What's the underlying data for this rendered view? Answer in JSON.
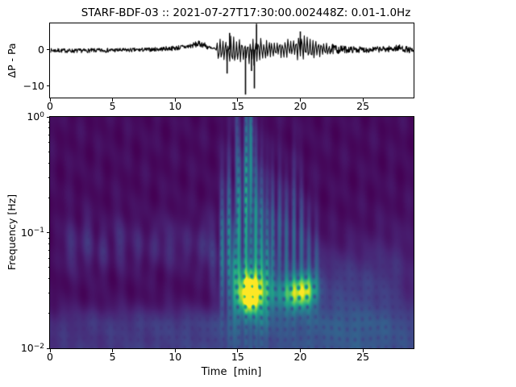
{
  "figure": {
    "title": "STARF-BDF-03 :: 2021-07-27T17:30:00.002448Z: 0.01-1.0Hz",
    "background": "#ffffff",
    "line_color": "#000000"
  },
  "axes": {
    "xlim": [
      0,
      29.05
    ],
    "x_ticks": [
      0,
      5,
      10,
      15,
      20,
      25
    ],
    "x_tick_labels": [
      "0",
      "5",
      "10",
      "15",
      "20",
      "25"
    ]
  },
  "waveform_plot": {
    "ylabel": "ΔP - Pa",
    "ylim": [
      -13.2,
      7.2
    ],
    "y_ticks": [
      {
        "value": 0,
        "label": "0"
      },
      {
        "value": -10,
        "label": "−10"
      }
    ]
  },
  "spectrogram_plot": {
    "ylabel": "Frequency [Hz]",
    "xlabel": "Time  [min]",
    "ylim_log10": [
      -2,
      0
    ],
    "y_major_ticks": [
      {
        "log10": 0,
        "base": "10",
        "exp": "0"
      },
      {
        "log10": -1,
        "base": "10",
        "exp": "−1"
      },
      {
        "log10": -2,
        "base": "10",
        "exp": "−2"
      }
    ],
    "y_minor_multipliers": [
      2,
      3,
      4,
      5,
      6,
      7,
      8,
      9
    ]
  },
  "chart_data": [
    {
      "type": "line",
      "name": "filtered-pressure-waveform",
      "title": "STARF-BDF-03 :: 2021-07-27T17:30:00.002448Z: 0.01-1.0Hz",
      "ylabel": "ΔP - Pa",
      "xlabel": "",
      "xlim": [
        0,
        29.05
      ],
      "ylim": [
        -13.2,
        7.2
      ],
      "yticks": [
        0,
        -10
      ],
      "xticks": [
        0,
        5,
        10,
        15,
        20,
        25
      ],
      "envelope": [
        [
          0.0,
          -0.8,
          0.35
        ],
        [
          1.0,
          -0.85,
          0.3
        ],
        [
          2.0,
          -0.95,
          0.25
        ],
        [
          3.0,
          -0.85,
          0.3
        ],
        [
          4.0,
          -0.8,
          0.35
        ],
        [
          5.0,
          -0.75,
          0.4
        ],
        [
          6.0,
          -0.7,
          0.4
        ],
        [
          7.0,
          -0.65,
          0.45
        ],
        [
          8.0,
          -0.55,
          0.55
        ],
        [
          9.0,
          -0.4,
          0.8
        ],
        [
          10.0,
          -0.25,
          1.1
        ],
        [
          11.0,
          0.1,
          1.6
        ],
        [
          11.8,
          0.7,
          2.4
        ],
        [
          12.2,
          0.6,
          2.3
        ],
        [
          12.7,
          -0.3,
          1.2
        ],
        [
          13.1,
          -1.0,
          0.7
        ],
        [
          13.4,
          -3.4,
          3.0
        ],
        [
          13.8,
          -4.8,
          4.2
        ],
        [
          14.2,
          -5.6,
          4.4
        ],
        [
          14.6,
          -5.2,
          4.1
        ],
        [
          15.0,
          -4.4,
          3.3
        ],
        [
          15.4,
          -3.6,
          2.9
        ],
        [
          15.8,
          -4.2,
          3.1
        ],
        [
          16.2,
          -5.2,
          3.3
        ],
        [
          16.6,
          -4.0,
          4.3
        ],
        [
          17.0,
          -3.6,
          3.1
        ],
        [
          17.4,
          -3.0,
          2.7
        ],
        [
          17.9,
          -2.3,
          2.1
        ],
        [
          18.4,
          -2.5,
          2.7
        ],
        [
          18.9,
          -2.9,
          3.4
        ],
        [
          19.3,
          -2.6,
          3.1
        ],
        [
          19.8,
          -3.3,
          4.5
        ],
        [
          20.2,
          -3.4,
          4.7
        ],
        [
          20.6,
          -3.1,
          3.9
        ],
        [
          21.1,
          -2.7,
          3.1
        ],
        [
          21.6,
          -2.2,
          2.3
        ],
        [
          22.1,
          -1.7,
          1.8
        ],
        [
          22.7,
          -1.3,
          1.4
        ],
        [
          23.3,
          -1.0,
          1.1
        ],
        [
          24.0,
          -0.9,
          0.9
        ],
        [
          25.0,
          -0.85,
          0.8
        ],
        [
          26.0,
          -0.8,
          0.85
        ],
        [
          27.0,
          -0.7,
          1.0
        ],
        [
          27.8,
          -0.5,
          1.4
        ],
        [
          28.3,
          -0.7,
          1.1
        ],
        [
          28.8,
          -1.1,
          0.6
        ],
        [
          29.05,
          -1.4,
          0.3
        ]
      ],
      "spikes": [
        [
          15.62,
          -12.4
        ],
        [
          16.33,
          -10.7
        ],
        [
          16.5,
          7.1
        ],
        [
          14.15,
          -6.6
        ],
        [
          14.35,
          4.6
        ],
        [
          16.1,
          -5.9
        ],
        [
          20.0,
          5.0
        ]
      ]
    },
    {
      "type": "heatmap",
      "name": "cwt-scalogram",
      "ylabel": "Frequency [Hz]",
      "xlabel": "Time  [min]",
      "xlim": [
        0,
        29.05
      ],
      "ylim": [
        0.01,
        1.0
      ],
      "yscale": "log",
      "colormap": {
        "name": "viridis",
        "anchors": [
          "#440154",
          "#482475",
          "#414487",
          "#355f8d",
          "#2a788e",
          "#21918c",
          "#22a884",
          "#44bf70",
          "#7ad151",
          "#bddf26",
          "#fde725"
        ]
      },
      "base_level": 0.03,
      "mottle_amp": 0.02,
      "speckle_depth": 0.55,
      "blobs_format": [
        "t_min",
        "log10_freq",
        "sigma_t",
        "sigma_logf",
        "amplitude"
      ],
      "blobs": [
        [
          15.95,
          -1.54,
          0.5,
          0.09,
          1.05
        ],
        [
          16.1,
          -1.47,
          1.0,
          0.16,
          0.45
        ],
        [
          19.9,
          -1.52,
          0.75,
          0.09,
          0.6
        ],
        [
          20.6,
          -1.5,
          0.5,
          0.1,
          0.28
        ],
        [
          18.2,
          -1.55,
          1.3,
          0.13,
          0.26
        ],
        [
          13.75,
          -1.15,
          0.14,
          0.38,
          0.4
        ],
        [
          14.3,
          -1.05,
          0.13,
          0.45,
          0.46
        ],
        [
          14.75,
          -1.35,
          0.16,
          0.3,
          0.45
        ],
        [
          15.1,
          -0.95,
          0.13,
          0.5,
          0.5
        ],
        [
          15.65,
          -0.9,
          0.13,
          0.55,
          0.52
        ],
        [
          16.05,
          -0.55,
          0.12,
          0.7,
          0.46
        ],
        [
          16.45,
          -1.0,
          0.13,
          0.5,
          0.5
        ],
        [
          16.9,
          -1.1,
          0.14,
          0.45,
          0.46
        ],
        [
          17.35,
          -1.2,
          0.14,
          0.38,
          0.4
        ],
        [
          17.8,
          -1.05,
          0.13,
          0.35,
          0.33
        ],
        [
          18.35,
          -1.0,
          0.14,
          0.35,
          0.3
        ],
        [
          18.9,
          -1.15,
          0.14,
          0.35,
          0.3
        ],
        [
          19.5,
          -1.05,
          0.13,
          0.4,
          0.32
        ],
        [
          20.1,
          -1.1,
          0.14,
          0.35,
          0.28
        ],
        [
          20.7,
          -1.25,
          0.14,
          0.3,
          0.24
        ],
        [
          21.3,
          -1.3,
          0.15,
          0.28,
          0.2
        ],
        [
          14.9,
          -0.35,
          0.1,
          0.45,
          0.18
        ],
        [
          15.7,
          -0.3,
          0.1,
          0.5,
          0.2
        ],
        [
          1.6,
          -1.12,
          0.35,
          0.16,
          0.13
        ],
        [
          3.0,
          -1.1,
          0.35,
          0.16,
          0.12
        ],
        [
          4.2,
          -1.15,
          0.3,
          0.14,
          0.1
        ],
        [
          5.6,
          -1.08,
          0.35,
          0.16,
          0.13
        ],
        [
          7.1,
          -1.12,
          0.3,
          0.15,
          0.11
        ],
        [
          8.4,
          -1.1,
          0.3,
          0.14,
          0.1
        ],
        [
          9.6,
          -1.1,
          0.35,
          0.16,
          0.13
        ],
        [
          11.0,
          -1.12,
          0.3,
          0.15,
          0.11
        ],
        [
          12.2,
          -1.1,
          0.3,
          0.16,
          0.12
        ],
        [
          13.0,
          -1.2,
          0.25,
          0.2,
          0.15
        ],
        [
          14.5,
          -1.78,
          16.0,
          0.1,
          0.1
        ],
        [
          14.5,
          -2.1,
          20.0,
          0.2,
          0.16
        ],
        [
          25.0,
          -2.0,
          8.0,
          0.18,
          0.08
        ],
        [
          22.5,
          -1.5,
          2.5,
          0.25,
          0.12
        ],
        [
          25.5,
          -1.6,
          2.5,
          0.3,
          0.08
        ],
        [
          27.5,
          -1.35,
          1.5,
          0.3,
          0.06
        ]
      ]
    }
  ]
}
